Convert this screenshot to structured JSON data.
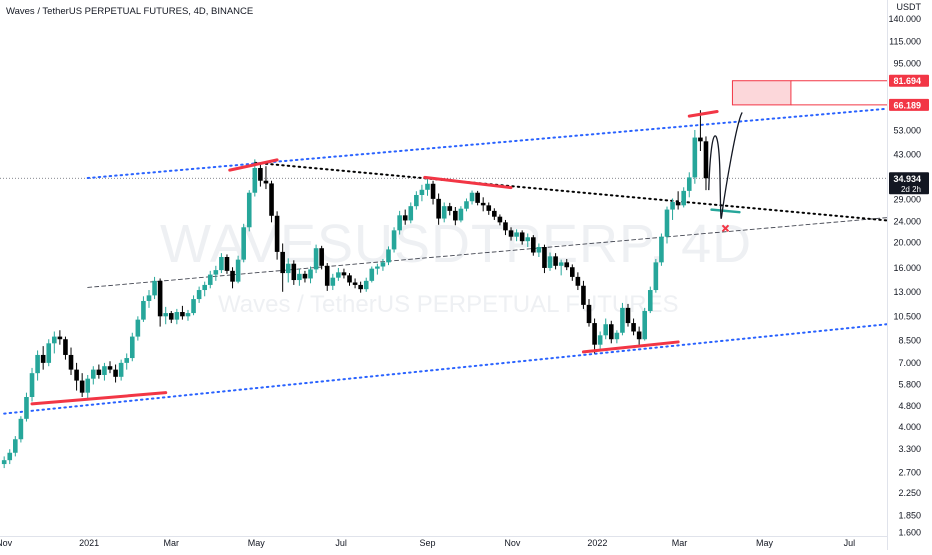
{
  "header": {
    "title": "Waves / TetherUS PERPETUAL FUTURES, 4D, BINANCE"
  },
  "watermark": {
    "main": "WAVESUSDTPERP, 4D",
    "sub": "Waves / TetherUS PERPETUAL FUTURES"
  },
  "price_axis": {
    "currency_label": "USDT",
    "ticks": [
      "140.000",
      "115.000",
      "95.000",
      "81.694",
      "66.189",
      "53.000",
      "43.000",
      "34.934",
      "29.000",
      "24.000",
      "20.000",
      "16.000",
      "13.000",
      "10.500",
      "8.500",
      "7.000",
      "5.800",
      "4.800",
      "4.000",
      "3.300",
      "2.700",
      "2.250",
      "1.850",
      "1.600"
    ]
  },
  "time_axis": {
    "ticks": [
      "Nov",
      "2021",
      "Mar",
      "May",
      "Jul",
      "Sep",
      "Nov",
      "2022",
      "Mar",
      "May",
      "Jul"
    ]
  },
  "price_tags": {
    "last": {
      "price": "34.934",
      "countdown": "2d 2h",
      "color": "#131722"
    },
    "target": {
      "price": "81.694",
      "color": "#f23645"
    },
    "resistance": {
      "price": "66.189",
      "color": "#f23645"
    }
  },
  "colors": {
    "up": "#26a69a",
    "down": "#000000",
    "channel": "#2962ff",
    "highlight": "#f23645",
    "trend": "#000000"
  },
  "chart_data": {
    "type": "candlestick",
    "symbol": "WAVESUSDTPERP",
    "interval": "4D",
    "exchange": "BINANCE",
    "title": "Waves / TetherUS PERPETUAL FUTURES, 4D, BINANCE",
    "y_scale": "log",
    "ylim": [
      1.55,
      165
    ],
    "x_range": [
      "2020-10-29",
      "2022-07-28"
    ],
    "last_price": 34.934,
    "candles": [
      {
        "d": "2020-11-01",
        "o": 2.9,
        "h": 3.1,
        "l": 2.8,
        "c": 3.0
      },
      {
        "d": "2020-11-05",
        "o": 3.0,
        "h": 3.3,
        "l": 2.9,
        "c": 3.2
      },
      {
        "d": "2020-11-09",
        "o": 3.2,
        "h": 3.7,
        "l": 3.1,
        "c": 3.6
      },
      {
        "d": "2020-11-13",
        "o": 3.6,
        "h": 4.4,
        "l": 3.5,
        "c": 4.3
      },
      {
        "d": "2020-11-17",
        "o": 4.3,
        "h": 5.4,
        "l": 4.2,
        "c": 5.2
      },
      {
        "d": "2020-11-21",
        "o": 5.2,
        "h": 6.7,
        "l": 5.0,
        "c": 6.4
      },
      {
        "d": "2020-11-25",
        "o": 6.4,
        "h": 7.8,
        "l": 6.0,
        "c": 7.5
      },
      {
        "d": "2020-11-29",
        "o": 7.5,
        "h": 8.1,
        "l": 6.6,
        "c": 7.0
      },
      {
        "d": "2020-12-03",
        "o": 7.0,
        "h": 8.6,
        "l": 6.8,
        "c": 8.3
      },
      {
        "d": "2020-12-07",
        "o": 8.3,
        "h": 9.2,
        "l": 7.6,
        "c": 8.8
      },
      {
        "d": "2020-12-11",
        "o": 8.8,
        "h": 9.3,
        "l": 8.2,
        "c": 8.6
      },
      {
        "d": "2020-12-15",
        "o": 8.6,
        "h": 8.8,
        "l": 7.2,
        "c": 7.5
      },
      {
        "d": "2020-12-19",
        "o": 7.5,
        "h": 8.0,
        "l": 6.3,
        "c": 6.6
      },
      {
        "d": "2020-12-23",
        "o": 6.6,
        "h": 7.0,
        "l": 5.5,
        "c": 6.0
      },
      {
        "d": "2020-12-27",
        "o": 6.0,
        "h": 6.4,
        "l": 5.2,
        "c": 5.4
      },
      {
        "d": "2020-12-31",
        "o": 5.4,
        "h": 6.3,
        "l": 5.1,
        "c": 6.1
      },
      {
        "d": "2021-01-04",
        "o": 6.1,
        "h": 6.8,
        "l": 5.8,
        "c": 6.6
      },
      {
        "d": "2021-01-08",
        "o": 6.6,
        "h": 6.9,
        "l": 6.1,
        "c": 6.3
      },
      {
        "d": "2021-01-12",
        "o": 6.3,
        "h": 7.0,
        "l": 6.0,
        "c": 6.8
      },
      {
        "d": "2021-01-16",
        "o": 6.8,
        "h": 7.1,
        "l": 6.4,
        "c": 6.6
      },
      {
        "d": "2021-01-20",
        "o": 6.6,
        "h": 6.9,
        "l": 5.9,
        "c": 6.2
      },
      {
        "d": "2021-01-24",
        "o": 6.2,
        "h": 7.2,
        "l": 6.0,
        "c": 7.0
      },
      {
        "d": "2021-01-28",
        "o": 7.0,
        "h": 7.6,
        "l": 6.6,
        "c": 7.3
      },
      {
        "d": "2021-02-01",
        "o": 7.3,
        "h": 9.1,
        "l": 7.1,
        "c": 8.8
      },
      {
        "d": "2021-02-05",
        "o": 8.8,
        "h": 10.5,
        "l": 8.5,
        "c": 10.2
      },
      {
        "d": "2021-02-09",
        "o": 10.2,
        "h": 12.5,
        "l": 10.0,
        "c": 12.0
      },
      {
        "d": "2021-02-13",
        "o": 12.0,
        "h": 13.2,
        "l": 11.3,
        "c": 12.6
      },
      {
        "d": "2021-02-17",
        "o": 12.6,
        "h": 14.8,
        "l": 12.2,
        "c": 14.3
      },
      {
        "d": "2021-02-21",
        "o": 14.3,
        "h": 14.6,
        "l": 9.6,
        "c": 10.5
      },
      {
        "d": "2021-02-25",
        "o": 10.5,
        "h": 11.4,
        "l": 9.8,
        "c": 10.8
      },
      {
        "d": "2021-03-01",
        "o": 10.8,
        "h": 11.0,
        "l": 9.9,
        "c": 10.2
      },
      {
        "d": "2021-03-05",
        "o": 10.2,
        "h": 11.2,
        "l": 9.8,
        "c": 10.9
      },
      {
        "d": "2021-03-09",
        "o": 10.9,
        "h": 11.5,
        "l": 10.2,
        "c": 10.5
      },
      {
        "d": "2021-03-13",
        "o": 10.5,
        "h": 11.1,
        "l": 10.1,
        "c": 10.8
      },
      {
        "d": "2021-03-17",
        "o": 10.8,
        "h": 12.6,
        "l": 10.6,
        "c": 12.2
      },
      {
        "d": "2021-03-21",
        "o": 12.2,
        "h": 13.6,
        "l": 11.8,
        "c": 13.2
      },
      {
        "d": "2021-03-25",
        "o": 13.2,
        "h": 14.2,
        "l": 12.5,
        "c": 13.8
      },
      {
        "d": "2021-03-29",
        "o": 13.8,
        "h": 15.6,
        "l": 13.4,
        "c": 15.1
      },
      {
        "d": "2021-04-02",
        "o": 15.1,
        "h": 16.3,
        "l": 14.3,
        "c": 15.7
      },
      {
        "d": "2021-04-06",
        "o": 15.7,
        "h": 18.2,
        "l": 15.3,
        "c": 17.6
      },
      {
        "d": "2021-04-10",
        "o": 17.6,
        "h": 18.0,
        "l": 15.2,
        "c": 15.6
      },
      {
        "d": "2021-04-14",
        "o": 15.6,
        "h": 16.1,
        "l": 13.4,
        "c": 14.2
      },
      {
        "d": "2021-04-18",
        "o": 14.2,
        "h": 17.8,
        "l": 14.0,
        "c": 17.2
      },
      {
        "d": "2021-04-22",
        "o": 17.2,
        "h": 23.5,
        "l": 16.8,
        "c": 22.8
      },
      {
        "d": "2021-04-26",
        "o": 22.8,
        "h": 31.5,
        "l": 22.0,
        "c": 30.8
      },
      {
        "d": "2021-04-30",
        "o": 30.8,
        "h": 41.2,
        "l": 29.8,
        "c": 38.2
      },
      {
        "d": "2021-05-04",
        "o": 38.2,
        "h": 39.5,
        "l": 32.5,
        "c": 34.2
      },
      {
        "d": "2021-05-08",
        "o": 34.2,
        "h": 38.8,
        "l": 31.8,
        "c": 33.4
      },
      {
        "d": "2021-05-12",
        "o": 33.4,
        "h": 34.2,
        "l": 23.8,
        "c": 25.2
      },
      {
        "d": "2021-05-16",
        "o": 25.2,
        "h": 26.2,
        "l": 17.2,
        "c": 18.4
      },
      {
        "d": "2021-05-20",
        "o": 18.4,
        "h": 19.8,
        "l": 13.0,
        "c": 15.3
      },
      {
        "d": "2021-05-24",
        "o": 15.3,
        "h": 17.4,
        "l": 14.1,
        "c": 16.6
      },
      {
        "d": "2021-05-28",
        "o": 16.6,
        "h": 17.1,
        "l": 13.8,
        "c": 14.4
      },
      {
        "d": "2021-06-01",
        "o": 14.4,
        "h": 15.9,
        "l": 13.7,
        "c": 15.2
      },
      {
        "d": "2021-06-05",
        "o": 15.2,
        "h": 15.6,
        "l": 14.1,
        "c": 14.6
      },
      {
        "d": "2021-06-09",
        "o": 14.6,
        "h": 16.2,
        "l": 14.0,
        "c": 15.8
      },
      {
        "d": "2021-06-13",
        "o": 15.8,
        "h": 19.6,
        "l": 15.3,
        "c": 19.0
      },
      {
        "d": "2021-06-17",
        "o": 19.0,
        "h": 19.4,
        "l": 15.8,
        "c": 16.3
      },
      {
        "d": "2021-06-21",
        "o": 16.3,
        "h": 16.7,
        "l": 13.1,
        "c": 13.7
      },
      {
        "d": "2021-06-25",
        "o": 13.7,
        "h": 15.2,
        "l": 13.2,
        "c": 14.7
      },
      {
        "d": "2021-06-29",
        "o": 14.7,
        "h": 16.0,
        "l": 14.3,
        "c": 15.4
      },
      {
        "d": "2021-07-03",
        "o": 15.4,
        "h": 15.9,
        "l": 14.6,
        "c": 15.0
      },
      {
        "d": "2021-07-07",
        "o": 15.0,
        "h": 15.3,
        "l": 13.7,
        "c": 14.1
      },
      {
        "d": "2021-07-11",
        "o": 14.1,
        "h": 14.6,
        "l": 13.4,
        "c": 13.8
      },
      {
        "d": "2021-07-15",
        "o": 13.8,
        "h": 14.2,
        "l": 12.9,
        "c": 13.3
      },
      {
        "d": "2021-07-19",
        "o": 13.3,
        "h": 14.7,
        "l": 13.0,
        "c": 14.3
      },
      {
        "d": "2021-07-23",
        "o": 14.3,
        "h": 16.2,
        "l": 14.1,
        "c": 15.9
      },
      {
        "d": "2021-07-27",
        "o": 15.9,
        "h": 16.6,
        "l": 15.1,
        "c": 16.2
      },
      {
        "d": "2021-07-31",
        "o": 16.2,
        "h": 17.3,
        "l": 15.6,
        "c": 16.8
      },
      {
        "d": "2021-08-04",
        "o": 16.8,
        "h": 19.3,
        "l": 16.4,
        "c": 18.8
      },
      {
        "d": "2021-08-08",
        "o": 18.8,
        "h": 22.8,
        "l": 18.3,
        "c": 22.2
      },
      {
        "d": "2021-08-12",
        "o": 22.2,
        "h": 26.3,
        "l": 21.4,
        "c": 25.3
      },
      {
        "d": "2021-08-16",
        "o": 25.3,
        "h": 26.6,
        "l": 23.3,
        "c": 24.2
      },
      {
        "d": "2021-08-20",
        "o": 24.2,
        "h": 28.3,
        "l": 23.6,
        "c": 27.4
      },
      {
        "d": "2021-08-24",
        "o": 27.4,
        "h": 31.2,
        "l": 26.6,
        "c": 30.2
      },
      {
        "d": "2021-08-28",
        "o": 30.2,
        "h": 33.0,
        "l": 28.6,
        "c": 31.6
      },
      {
        "d": "2021-09-01",
        "o": 31.6,
        "h": 35.2,
        "l": 30.0,
        "c": 33.3
      },
      {
        "d": "2021-09-05",
        "o": 33.3,
        "h": 34.2,
        "l": 27.8,
        "c": 29.2
      },
      {
        "d": "2021-09-09",
        "o": 29.2,
        "h": 30.6,
        "l": 23.3,
        "c": 24.6
      },
      {
        "d": "2021-09-13",
        "o": 24.6,
        "h": 28.3,
        "l": 23.8,
        "c": 27.4
      },
      {
        "d": "2021-09-17",
        "o": 27.4,
        "h": 28.2,
        "l": 25.3,
        "c": 26.3
      },
      {
        "d": "2021-09-21",
        "o": 26.3,
        "h": 27.2,
        "l": 23.2,
        "c": 24.2
      },
      {
        "d": "2021-09-25",
        "o": 24.2,
        "h": 27.4,
        "l": 23.8,
        "c": 26.8
      },
      {
        "d": "2021-09-29",
        "o": 26.8,
        "h": 29.3,
        "l": 26.2,
        "c": 28.6
      },
      {
        "d": "2021-10-03",
        "o": 28.6,
        "h": 31.4,
        "l": 27.8,
        "c": 30.8
      },
      {
        "d": "2021-10-07",
        "o": 30.8,
        "h": 31.3,
        "l": 27.6,
        "c": 28.2
      },
      {
        "d": "2021-10-11",
        "o": 28.2,
        "h": 29.6,
        "l": 26.2,
        "c": 27.6
      },
      {
        "d": "2021-10-15",
        "o": 27.6,
        "h": 28.3,
        "l": 25.4,
        "c": 26.3
      },
      {
        "d": "2021-10-19",
        "o": 26.3,
        "h": 26.9,
        "l": 24.3,
        "c": 25.0
      },
      {
        "d": "2021-10-23",
        "o": 25.0,
        "h": 25.5,
        "l": 23.2,
        "c": 23.8
      },
      {
        "d": "2021-10-27",
        "o": 23.8,
        "h": 24.3,
        "l": 21.3,
        "c": 22.2
      },
      {
        "d": "2021-10-31",
        "o": 22.2,
        "h": 22.8,
        "l": 20.3,
        "c": 21.0
      },
      {
        "d": "2021-11-04",
        "o": 21.0,
        "h": 22.4,
        "l": 20.2,
        "c": 21.8
      },
      {
        "d": "2021-11-08",
        "o": 21.8,
        "h": 22.2,
        "l": 19.6,
        "c": 20.2
      },
      {
        "d": "2021-11-12",
        "o": 20.2,
        "h": 21.6,
        "l": 19.2,
        "c": 20.9
      },
      {
        "d": "2021-11-16",
        "o": 20.9,
        "h": 21.3,
        "l": 17.8,
        "c": 18.3
      },
      {
        "d": "2021-11-20",
        "o": 18.3,
        "h": 19.8,
        "l": 17.6,
        "c": 19.2
      },
      {
        "d": "2021-11-24",
        "o": 19.2,
        "h": 19.6,
        "l": 15.3,
        "c": 16.0
      },
      {
        "d": "2021-11-28",
        "o": 16.0,
        "h": 18.3,
        "l": 15.6,
        "c": 17.7
      },
      {
        "d": "2021-12-02",
        "o": 17.7,
        "h": 18.2,
        "l": 15.8,
        "c": 16.3
      },
      {
        "d": "2021-12-06",
        "o": 16.3,
        "h": 17.2,
        "l": 15.0,
        "c": 16.8
      },
      {
        "d": "2021-12-10",
        "o": 16.8,
        "h": 17.3,
        "l": 15.7,
        "c": 16.1
      },
      {
        "d": "2021-12-14",
        "o": 16.1,
        "h": 16.5,
        "l": 14.3,
        "c": 14.8
      },
      {
        "d": "2021-12-18",
        "o": 14.8,
        "h": 15.4,
        "l": 13.2,
        "c": 13.7
      },
      {
        "d": "2021-12-22",
        "o": 13.7,
        "h": 14.3,
        "l": 11.2,
        "c": 11.6
      },
      {
        "d": "2021-12-26",
        "o": 11.6,
        "h": 12.2,
        "l": 9.6,
        "c": 9.9
      },
      {
        "d": "2021-12-30",
        "o": 9.9,
        "h": 10.3,
        "l": 7.6,
        "c": 8.2
      },
      {
        "d": "2022-01-03",
        "o": 8.2,
        "h": 9.2,
        "l": 7.9,
        "c": 8.9
      },
      {
        "d": "2022-01-07",
        "o": 8.9,
        "h": 10.3,
        "l": 8.6,
        "c": 9.8
      },
      {
        "d": "2022-01-11",
        "o": 9.8,
        "h": 10.1,
        "l": 8.3,
        "c": 8.6
      },
      {
        "d": "2022-01-15",
        "o": 8.6,
        "h": 9.3,
        "l": 8.3,
        "c": 9.1
      },
      {
        "d": "2022-01-19",
        "o": 9.1,
        "h": 11.8,
        "l": 8.9,
        "c": 11.3
      },
      {
        "d": "2022-01-23",
        "o": 11.3,
        "h": 11.7,
        "l": 9.6,
        "c": 9.9
      },
      {
        "d": "2022-01-27",
        "o": 9.9,
        "h": 10.3,
        "l": 8.9,
        "c": 9.2
      },
      {
        "d": "2022-01-31",
        "o": 9.2,
        "h": 9.6,
        "l": 8.2,
        "c": 8.6
      },
      {
        "d": "2022-02-04",
        "o": 8.6,
        "h": 11.3,
        "l": 8.5,
        "c": 11.0
      },
      {
        "d": "2022-02-08",
        "o": 11.0,
        "h": 13.6,
        "l": 10.8,
        "c": 13.2
      },
      {
        "d": "2022-02-12",
        "o": 13.2,
        "h": 17.3,
        "l": 12.9,
        "c": 16.8
      },
      {
        "d": "2022-02-16",
        "o": 16.8,
        "h": 21.6,
        "l": 16.3,
        "c": 21.0
      },
      {
        "d": "2022-02-20",
        "o": 21.0,
        "h": 27.3,
        "l": 19.8,
        "c": 26.6
      },
      {
        "d": "2022-02-24",
        "o": 26.6,
        "h": 29.3,
        "l": 24.3,
        "c": 28.4
      },
      {
        "d": "2022-02-28",
        "o": 28.4,
        "h": 31.2,
        "l": 26.6,
        "c": 27.6
      },
      {
        "d": "2022-03-04",
        "o": 27.6,
        "h": 32.3,
        "l": 27.1,
        "c": 31.3
      },
      {
        "d": "2022-03-08",
        "o": 31.3,
        "h": 36.8,
        "l": 29.6,
        "c": 35.2
      },
      {
        "d": "2022-03-12",
        "o": 35.2,
        "h": 53.2,
        "l": 33.3,
        "c": 49.8
      },
      {
        "d": "2022-03-16",
        "o": 49.8,
        "h": 63.2,
        "l": 44.3,
        "c": 48.2
      },
      {
        "d": "2022-03-20",
        "o": 48.2,
        "h": 50.3,
        "l": 31.5,
        "c": 34.934
      }
    ],
    "drawings": {
      "channel_upper": {
        "from": {
          "d": "2020-12-31",
          "p": 35.0
        },
        "to": {
          "d": "2022-07-28",
          "p": 64.0
        }
      },
      "channel_lower": {
        "from": {
          "d": "2020-11-01",
          "p": 4.5
        },
        "to": {
          "d": "2022-07-28",
          "p": 9.8
        }
      },
      "channel_mid": {
        "from": {
          "d": "2020-12-31",
          "p": 13.5
        },
        "to": {
          "d": "2022-07-28",
          "p": 24.8
        }
      },
      "descending_trendline": {
        "from": {
          "d": "2021-04-30",
          "p": 40.0
        },
        "to": {
          "d": "2022-07-28",
          "p": 24.2
        }
      },
      "horizontal_last_price": {
        "p": 34.934
      },
      "resistance_segments": [
        {
          "from": {
            "d": "2021-04-12",
            "p": 37.5
          },
          "to": {
            "d": "2021-05-16",
            "p": 41.0
          }
        },
        {
          "from": {
            "d": "2021-08-30",
            "p": 35.2
          },
          "to": {
            "d": "2021-10-31",
            "p": 32.2
          }
        },
        {
          "from": {
            "d": "2022-03-08",
            "p": 60.0
          },
          "to": {
            "d": "2022-03-28",
            "p": 62.5
          }
        },
        {
          "from": {
            "d": "2020-11-21",
            "p": 4.9
          },
          "to": {
            "d": "2021-02-25",
            "p": 5.4
          }
        },
        {
          "from": {
            "d": "2021-12-22",
            "p": 7.7
          },
          "to": {
            "d": "2022-02-28",
            "p": 8.4
          }
        }
      ],
      "support_segment_green": {
        "from": {
          "d": "2022-03-24",
          "p": 26.6
        },
        "to": {
          "d": "2022-04-13",
          "p": 26.0
        }
      },
      "projection_path": [
        {
          "d": "2022-03-22",
          "p": 31.5
        },
        {
          "d": "2022-03-25",
          "p": 48.5
        },
        {
          "d": "2022-04-01",
          "p": 26.8
        },
        {
          "d": "2022-04-15",
          "p": 62.0
        }
      ],
      "target_zone": {
        "from": {
          "d": "2022-04-08",
          "p": 66.189
        },
        "to": {
          "d": "2022-05-20",
          "p": 81.694
        }
      },
      "invalidation_mark": {
        "d": "2022-04-03",
        "p": 22.6
      }
    }
  }
}
